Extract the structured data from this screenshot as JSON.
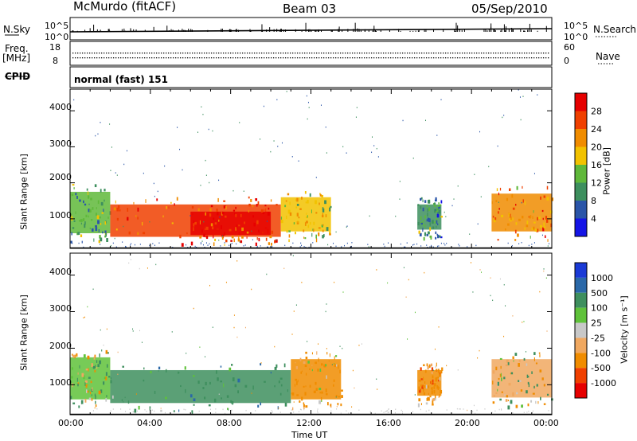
{
  "header": {
    "station": "McMurdo (fitACF)",
    "beam": "Beam 03",
    "date": "05/Sep/2010"
  },
  "summary_panels": {
    "nsky_label": "N.Sky",
    "nsky_ticks": [
      "10^5",
      "10^0"
    ],
    "nsearch_label": "N.Search",
    "nsearch_ticks": [
      "10^5",
      "10^0"
    ],
    "freq_label": "Freq.",
    "freq_unit": "[MHz]",
    "freq_ticks": [
      "18",
      "8"
    ],
    "nave_label": "Nave",
    "nave_ticks": [
      "60",
      "0"
    ],
    "cpid_label": "CPID",
    "cpid_value": "normal (fast) 151"
  },
  "colors": {
    "power_scale": [
      "#1414e6",
      "#2a55a8",
      "#3d8f5e",
      "#5fb83a",
      "#f2c200",
      "#f08c00",
      "#f04000",
      "#e60000"
    ],
    "velocity_scale": [
      "#1a3ad6",
      "#2a68a8",
      "#3e8f5e",
      "#5fc23a",
      "#c8c8c8",
      "#f0a860",
      "#f08c00",
      "#f04000",
      "#e60000"
    ]
  },
  "chart_data": [
    {
      "type": "heatmap",
      "title": "",
      "xlabel": "",
      "ylabel": "Slant Range [km]",
      "x_ticks": [
        "00:00",
        "04:00",
        "08:00",
        "12:00",
        "16:00",
        "20:00",
        "00:00"
      ],
      "y_ticks": [
        "1000",
        "2000",
        "3000",
        "4000"
      ],
      "colorbar_label": "Power [dB]",
      "colorbar_ticks": [
        "4",
        "8",
        "12",
        "16",
        "20",
        "24",
        "28"
      ],
      "xlim_hours": [
        0,
        24
      ],
      "ylim_km": [
        180,
        4600
      ],
      "regions": [
        {
          "t_start": 0.0,
          "t_end": 2.0,
          "r_low": 600,
          "r_high": 1750,
          "level_db": 12
        },
        {
          "t_start": 2.0,
          "t_end": 10.5,
          "r_low": 500,
          "r_high": 1400,
          "level_db": 24
        },
        {
          "t_start": 6.0,
          "t_end": 10.0,
          "r_low": 550,
          "r_high": 1200,
          "level_db": 28
        },
        {
          "t_start": 10.5,
          "t_end": 13.0,
          "r_low": 650,
          "r_high": 1600,
          "level_db": 16
        },
        {
          "t_start": 17.3,
          "t_end": 18.5,
          "r_low": 700,
          "r_high": 1400,
          "level_db": 10
        },
        {
          "t_start": 21.0,
          "t_end": 24.0,
          "r_low": 650,
          "r_high": 1700,
          "level_db": 22
        }
      ]
    },
    {
      "type": "heatmap",
      "title": "",
      "xlabel": "Time UT",
      "ylabel": "Slant Range [km]",
      "x_ticks": [
        "00:00",
        "04:00",
        "08:00",
        "12:00",
        "16:00",
        "20:00",
        "00:00"
      ],
      "y_ticks": [
        "1000",
        "2000",
        "3000",
        "4000"
      ],
      "colorbar_label": "Velocity [m s⁻¹]",
      "colorbar_ticks": [
        "1000",
        "500",
        "100",
        "25",
        "-25",
        "-100",
        "-500",
        "-1000"
      ],
      "xlim_hours": [
        0,
        24
      ],
      "ylim_km": [
        180,
        4600
      ],
      "regions": [
        {
          "t_start": 0.0,
          "t_end": 2.0,
          "r_low": 600,
          "r_high": 1750,
          "level_ms": 50
        },
        {
          "t_start": 2.0,
          "t_end": 11.0,
          "r_low": 500,
          "r_high": 1400,
          "level_ms": 300
        },
        {
          "t_start": 11.0,
          "t_end": 13.5,
          "r_low": 600,
          "r_high": 1700,
          "level_ms": -200
        },
        {
          "t_start": 17.3,
          "t_end": 18.5,
          "r_low": 700,
          "r_high": 1400,
          "level_ms": -300
        },
        {
          "t_start": 21.0,
          "t_end": 24.0,
          "r_low": 650,
          "r_high": 1700,
          "level_ms": -50
        }
      ]
    }
  ]
}
